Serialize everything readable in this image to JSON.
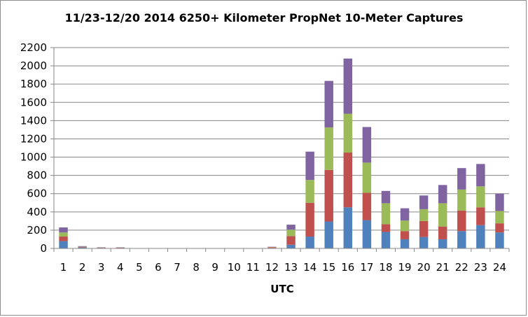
{
  "chart_data": {
    "type": "bar",
    "stacked": true,
    "title": "11/23-12/20 2014 6250+ Kilometer PropNet 10-Meter Captures",
    "xlabel": "UTC",
    "ylabel": "",
    "ylim": [
      0,
      2200
    ],
    "ytick_step": 200,
    "grid": true,
    "legend": "none",
    "categories": [
      "1",
      "2",
      "3",
      "4",
      "5",
      "6",
      "7",
      "8",
      "9",
      "10",
      "11",
      "12",
      "13",
      "14",
      "15",
      "16",
      "17",
      "18",
      "19",
      "20",
      "21",
      "22",
      "23",
      "24"
    ],
    "series": [
      {
        "color": "#4f81bd",
        "values": [
          80,
          10,
          5,
          5,
          0,
          0,
          0,
          0,
          0,
          0,
          0,
          5,
          40,
          130,
          295,
          450,
          310,
          180,
          100,
          125,
          100,
          190,
          255,
          175
        ]
      },
      {
        "color": "#c0504d",
        "values": [
          50,
          5,
          3,
          3,
          0,
          0,
          0,
          0,
          0,
          0,
          0,
          8,
          95,
          370,
          565,
          600,
          300,
          85,
          90,
          175,
          140,
          225,
          195,
          100
        ]
      },
      {
        "color": "#9bbb59",
        "values": [
          45,
          3,
          2,
          2,
          0,
          0,
          0,
          0,
          0,
          0,
          0,
          2,
          70,
          250,
          465,
          425,
          330,
          230,
          115,
          130,
          255,
          230,
          230,
          135
        ]
      },
      {
        "color": "#8064a2",
        "values": [
          55,
          7,
          3,
          3,
          0,
          0,
          0,
          0,
          0,
          0,
          0,
          3,
          55,
          310,
          510,
          605,
          390,
          135,
          135,
          150,
          200,
          235,
          245,
          190
        ]
      }
    ]
  }
}
